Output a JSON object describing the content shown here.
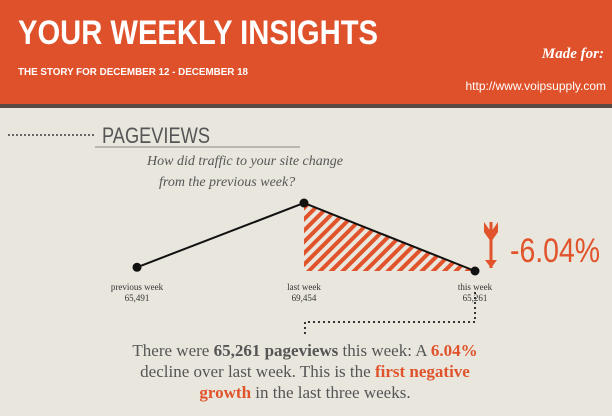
{
  "header": {
    "title": "YOUR WEEKLY INSIGHTS",
    "subtitle": "THE STORY FOR DECEMBER 12 - DECEMBER 18",
    "made_for": "Made for:",
    "url": "http://www.voipsupply.com"
  },
  "section": {
    "title": "PAGEVIEWS",
    "question": [
      "How did traffic to your site change",
      "from the previous week?"
    ]
  },
  "chart_data": {
    "type": "line",
    "categories": [
      "previous week",
      "last week",
      "this week"
    ],
    "values": [
      65491,
      69454,
      65261
    ],
    "value_labels": [
      "65,491",
      "69,454",
      "65,261"
    ],
    "color": "#e0532b",
    "change": {
      "value": -6.04,
      "label": "-6.04%"
    }
  },
  "summary": {
    "segments": [
      "There were ",
      "65,261 pageviews",
      " this week: A ",
      "6.04%",
      " decline over last week. This is the ",
      "first negative growth",
      " in the last three weeks."
    ]
  }
}
